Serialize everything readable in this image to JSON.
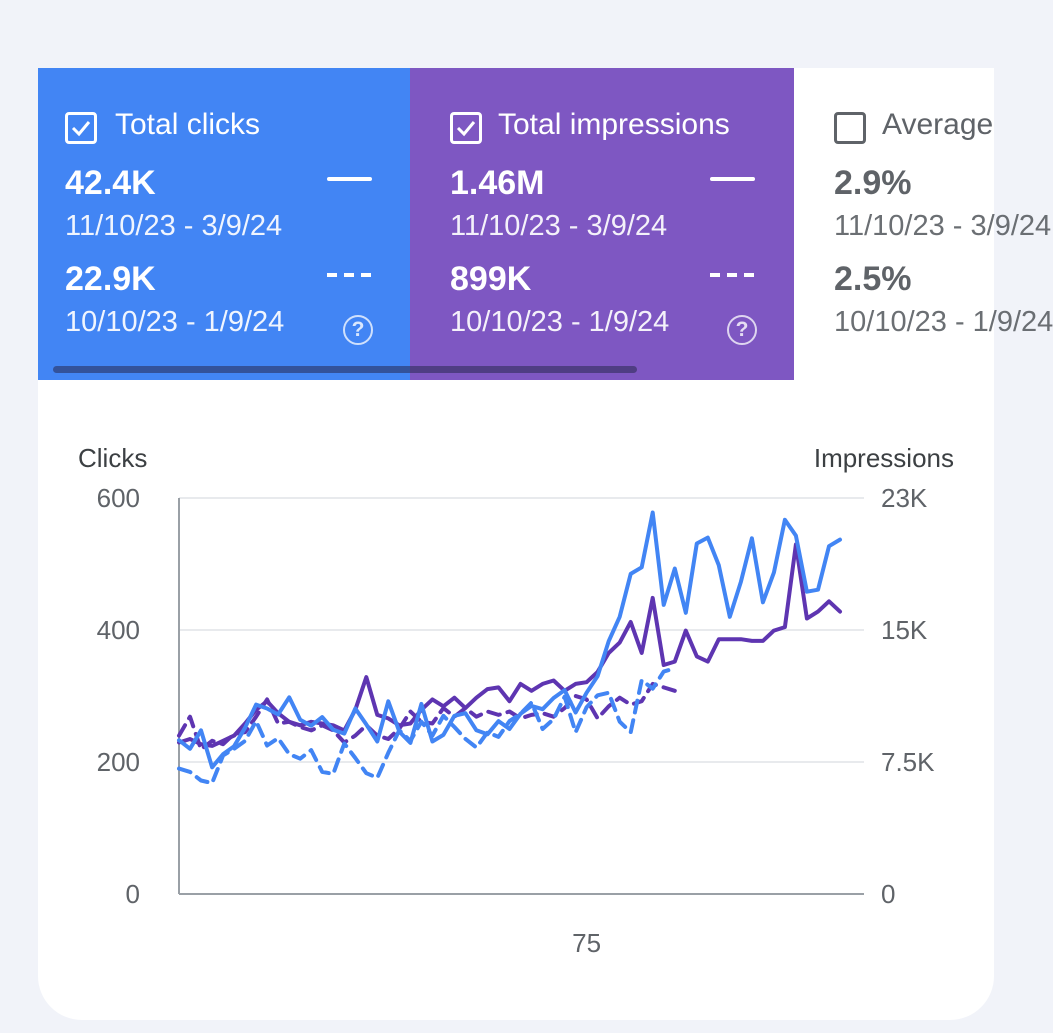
{
  "tiles": [
    {
      "label": "Total clicks",
      "checked": true,
      "current_value": "42.4K",
      "current_range": "11/10/23 - 3/9/24",
      "previous_value": "22.9K",
      "previous_range": "10/10/23 - 1/9/24",
      "color": "#4285f4"
    },
    {
      "label": "Total impressions",
      "checked": true,
      "current_value": "1.46M",
      "current_range": "11/10/23 - 3/9/24",
      "previous_value": "899K",
      "previous_range": "10/10/23 - 1/9/24",
      "color": "#7e57c2"
    },
    {
      "label": "Average",
      "checked": false,
      "current_value": "2.9%",
      "current_range": "11/10/23 - 3/9/24",
      "previous_value": "2.5%",
      "previous_range": "10/10/23 - 1/9/24"
    }
  ],
  "help_icon": "help-circle-icon",
  "chart_data": {
    "type": "line",
    "ylabel_left": "Clicks",
    "ylabel_right": "Impressions",
    "y_left_ticks": [
      "600",
      "400",
      "200",
      "0"
    ],
    "y_right_ticks": [
      "23K",
      "15K",
      "7.5K",
      "0"
    ],
    "ylim_left": [
      0,
      600
    ],
    "ylim_right": [
      0,
      23000
    ],
    "x_tick_label": "75",
    "x_tick_at": 75,
    "xlim": [
      1,
      121
    ],
    "grid": true,
    "series": [
      {
        "name": "Total clicks",
        "axis": "left",
        "style": "solid",
        "color": "#4285f4",
        "x": [
          1,
          3,
          5,
          7,
          9,
          11,
          13,
          15,
          17,
          19,
          21,
          23,
          25,
          27,
          29,
          31,
          33,
          35,
          37,
          39,
          41,
          43,
          45,
          47,
          49,
          51,
          53,
          55,
          57,
          59,
          61,
          63,
          65,
          67,
          69,
          71,
          73,
          75,
          77,
          79,
          81,
          83,
          85,
          87,
          89,
          91,
          93,
          95,
          97,
          99,
          101,
          103,
          105,
          107,
          109,
          111,
          113,
          115,
          117,
          119,
          121
        ],
        "values": [
          233,
          220,
          248,
          192,
          212,
          224,
          252,
          287,
          281,
          272,
          298,
          264,
          255,
          268,
          249,
          243,
          281,
          257,
          231,
          292,
          246,
          229,
          288,
          231,
          241,
          270,
          274,
          248,
          242,
          262,
          250,
          273,
          285,
          280,
          297,
          309,
          275,
          305,
          330,
          383,
          420,
          485,
          495,
          578,
          438,
          493,
          426,
          531,
          540,
          498,
          420,
          473,
          539,
          442,
          487,
          567,
          543,
          458,
          461,
          527,
          537
        ]
      },
      {
        "name": "Total impressions",
        "axis": "right",
        "style": "solid",
        "color": "#5e35b1",
        "x": [
          1,
          3,
          5,
          7,
          9,
          11,
          13,
          15,
          17,
          19,
          21,
          23,
          25,
          27,
          29,
          31,
          33,
          35,
          37,
          39,
          41,
          43,
          45,
          47,
          49,
          51,
          53,
          55,
          57,
          59,
          61,
          63,
          65,
          67,
          69,
          71,
          73,
          75,
          77,
          79,
          81,
          83,
          85,
          87,
          89,
          91,
          93,
          95,
          97,
          99,
          101,
          103,
          105,
          107,
          109,
          111,
          113,
          115,
          117,
          119,
          121
        ],
        "values": [
          8800,
          9000,
          8700,
          8600,
          8900,
          9200,
          9900,
          10700,
          11200,
          10500,
          10000,
          9800,
          10000,
          9900,
          9800,
          9500,
          10700,
          12600,
          10400,
          10200,
          9800,
          9900,
          10700,
          11300,
          10900,
          11400,
          10800,
          11400,
          11900,
          12000,
          11200,
          12200,
          11800,
          12200,
          12400,
          11800,
          12200,
          12300,
          12900,
          14000,
          14600,
          15800,
          14000,
          17200,
          13300,
          13500,
          15300,
          13800,
          13500,
          14800,
          14800,
          14800,
          14700,
          14700,
          15300,
          15500,
          20300,
          16000,
          16400,
          17000,
          16400
        ]
      },
      {
        "name": "Total clicks (previous period)",
        "axis": "left",
        "style": "dashed",
        "color": "#4285f4",
        "x": [
          1,
          3,
          5,
          7,
          9,
          11,
          13,
          15,
          17,
          19,
          21,
          23,
          25,
          27,
          29,
          31,
          33,
          35,
          37,
          39,
          41,
          43,
          45,
          47,
          49,
          51,
          53,
          55,
          57,
          59,
          61,
          63,
          65,
          67,
          69,
          71,
          73,
          75,
          77,
          79,
          81,
          83,
          85,
          87,
          89,
          91
        ],
        "values": [
          190,
          185,
          172,
          168,
          210,
          220,
          232,
          262,
          225,
          236,
          212,
          205,
          218,
          185,
          182,
          228,
          206,
          183,
          176,
          214,
          248,
          232,
          261,
          240,
          270,
          253,
          235,
          222,
          245,
          238,
          262,
          273,
          290,
          250,
          265,
          299,
          245,
          283,
          301,
          305,
          261,
          245,
          324,
          311,
          337,
          342
        ]
      },
      {
        "name": "Total impressions (previous period)",
        "axis": "right",
        "style": "dashed",
        "color": "#5e35b1",
        "x": [
          1,
          3,
          5,
          7,
          9,
          11,
          13,
          15,
          17,
          19,
          21,
          23,
          25,
          27,
          29,
          31,
          33,
          35,
          37,
          39,
          41,
          43,
          45,
          47,
          49,
          51,
          53,
          55,
          57,
          59,
          61,
          63,
          65,
          67,
          69,
          71,
          73,
          75,
          77,
          79,
          81,
          83,
          85,
          87,
          89,
          91
        ],
        "values": [
          9200,
          10300,
          8400,
          8900,
          8700,
          9300,
          9400,
          10300,
          11300,
          9900,
          10000,
          9700,
          9500,
          9800,
          9500,
          8800,
          9200,
          9800,
          9200,
          9000,
          9600,
          10600,
          10000,
          9900,
          10800,
          10300,
          10800,
          10300,
          10600,
          10400,
          10600,
          10200,
          10400,
          10500,
          10300,
          10800,
          11500,
          11300,
          10200,
          10900,
          11400,
          11000,
          11200,
          12200,
          12000,
          11800
        ]
      }
    ]
  }
}
